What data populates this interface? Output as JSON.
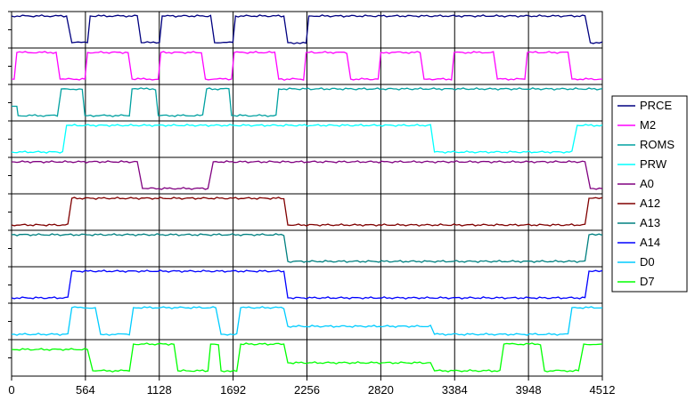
{
  "chart_data": {
    "type": "line",
    "x_range": [
      0,
      4512
    ],
    "x_ticks": [
      "0",
      "564",
      "1128",
      "1692",
      "2256",
      "2820",
      "3384",
      "3948",
      "4512"
    ],
    "grid": true,
    "legend_position": "right",
    "y_levels": "each trace is a digital signal: 0 = low, 1 = high, 0.5 = mid level",
    "series": [
      {
        "name": "PRCE",
        "color": "#000080",
        "points": [
          [
            0,
            1
          ],
          [
            420,
            1
          ],
          [
            460,
            0
          ],
          [
            580,
            0
          ],
          [
            600,
            1
          ],
          [
            960,
            1
          ],
          [
            990,
            0
          ],
          [
            1130,
            0
          ],
          [
            1150,
            1
          ],
          [
            1520,
            1
          ],
          [
            1550,
            0
          ],
          [
            1690,
            0
          ],
          [
            1710,
            1
          ],
          [
            2080,
            1
          ],
          [
            2110,
            0
          ],
          [
            2250,
            0
          ],
          [
            2270,
            1
          ],
          [
            4380,
            1
          ],
          [
            4420,
            0
          ],
          [
            4512,
            0
          ]
        ]
      },
      {
        "name": "M2",
        "color": "#ff00ff",
        "points": [
          [
            0,
            0
          ],
          [
            20,
            0
          ],
          [
            40,
            1
          ],
          [
            340,
            1
          ],
          [
            370,
            0
          ],
          [
            560,
            0
          ],
          [
            580,
            1
          ],
          [
            890,
            1
          ],
          [
            920,
            0
          ],
          [
            1120,
            0
          ],
          [
            1140,
            1
          ],
          [
            1450,
            1
          ],
          [
            1480,
            0
          ],
          [
            1680,
            0
          ],
          [
            1700,
            1
          ],
          [
            2010,
            1
          ],
          [
            2040,
            0
          ],
          [
            2230,
            0
          ],
          [
            2250,
            1
          ],
          [
            2560,
            1
          ],
          [
            2590,
            0
          ],
          [
            2800,
            0
          ],
          [
            2820,
            1
          ],
          [
            3120,
            1
          ],
          [
            3150,
            0
          ],
          [
            3360,
            0
          ],
          [
            3380,
            1
          ],
          [
            3680,
            1
          ],
          [
            3710,
            0
          ],
          [
            3920,
            0
          ],
          [
            3940,
            1
          ],
          [
            4250,
            1
          ],
          [
            4280,
            0
          ],
          [
            4512,
            0
          ]
        ]
      },
      {
        "name": "ROMS",
        "color": "#00a0a0",
        "points": [
          [
            0,
            0.35
          ],
          [
            40,
            0.35
          ],
          [
            50,
            0
          ],
          [
            350,
            0
          ],
          [
            380,
            1
          ],
          [
            540,
            1
          ],
          [
            560,
            0
          ],
          [
            900,
            0
          ],
          [
            920,
            1
          ],
          [
            1100,
            1
          ],
          [
            1120,
            0
          ],
          [
            1460,
            0
          ],
          [
            1490,
            1
          ],
          [
            1660,
            1
          ],
          [
            1680,
            0
          ],
          [
            2020,
            0
          ],
          [
            2040,
            1
          ],
          [
            4512,
            1
          ]
        ]
      },
      {
        "name": "PRW",
        "color": "#00ffff",
        "points": [
          [
            0,
            0
          ],
          [
            390,
            0
          ],
          [
            420,
            1
          ],
          [
            3200,
            1
          ],
          [
            3230,
            0
          ],
          [
            4280,
            0
          ],
          [
            4320,
            1
          ],
          [
            4512,
            1
          ]
        ]
      },
      {
        "name": "A0",
        "color": "#800080",
        "points": [
          [
            0,
            1
          ],
          [
            960,
            1
          ],
          [
            1000,
            0
          ],
          [
            1500,
            0
          ],
          [
            1540,
            1
          ],
          [
            4380,
            1
          ],
          [
            4420,
            0
          ],
          [
            4512,
            0
          ]
        ]
      },
      {
        "name": "A12",
        "color": "#800000",
        "points": [
          [
            0,
            0
          ],
          [
            430,
            0
          ],
          [
            460,
            1
          ],
          [
            2080,
            1
          ],
          [
            2110,
            0
          ],
          [
            4380,
            0
          ],
          [
            4410,
            1
          ],
          [
            4512,
            1
          ]
        ]
      },
      {
        "name": "A13",
        "color": "#008080",
        "points": [
          [
            0,
            1
          ],
          [
            2080,
            1
          ],
          [
            2110,
            0
          ],
          [
            4380,
            0
          ],
          [
            4410,
            1
          ],
          [
            4512,
            1
          ]
        ]
      },
      {
        "name": "A14",
        "color": "#0000ff",
        "points": [
          [
            0,
            0
          ],
          [
            430,
            0
          ],
          [
            460,
            1
          ],
          [
            2080,
            1
          ],
          [
            2110,
            0
          ],
          [
            4380,
            0
          ],
          [
            4410,
            1
          ],
          [
            4512,
            1
          ]
        ]
      },
      {
        "name": "D0",
        "color": "#00ccff",
        "points": [
          [
            0,
            0
          ],
          [
            430,
            0
          ],
          [
            460,
            1
          ],
          [
            640,
            1
          ],
          [
            680,
            0
          ],
          [
            900,
            0
          ],
          [
            930,
            1
          ],
          [
            1560,
            1
          ],
          [
            1600,
            0
          ],
          [
            1720,
            0
          ],
          [
            1750,
            1
          ],
          [
            2080,
            1
          ],
          [
            2110,
            0.3
          ],
          [
            3200,
            0.3
          ],
          [
            3230,
            0
          ],
          [
            4250,
            0
          ],
          [
            4280,
            1
          ],
          [
            4512,
            1
          ]
        ]
      },
      {
        "name": "D7",
        "color": "#00ff00",
        "points": [
          [
            0,
            0.8
          ],
          [
            580,
            0.8
          ],
          [
            620,
            0
          ],
          [
            900,
            0
          ],
          [
            930,
            1
          ],
          [
            1240,
            1
          ],
          [
            1270,
            0
          ],
          [
            1500,
            0
          ],
          [
            1520,
            1
          ],
          [
            1580,
            1
          ],
          [
            1600,
            0
          ],
          [
            1720,
            0
          ],
          [
            1750,
            1
          ],
          [
            2080,
            1
          ],
          [
            2110,
            0.3
          ],
          [
            3200,
            0.3
          ],
          [
            3230,
            0
          ],
          [
            3730,
            0
          ],
          [
            3760,
            1
          ],
          [
            4040,
            1
          ],
          [
            4070,
            0
          ],
          [
            4330,
            0
          ],
          [
            4370,
            1
          ],
          [
            4512,
            1
          ]
        ]
      }
    ]
  }
}
